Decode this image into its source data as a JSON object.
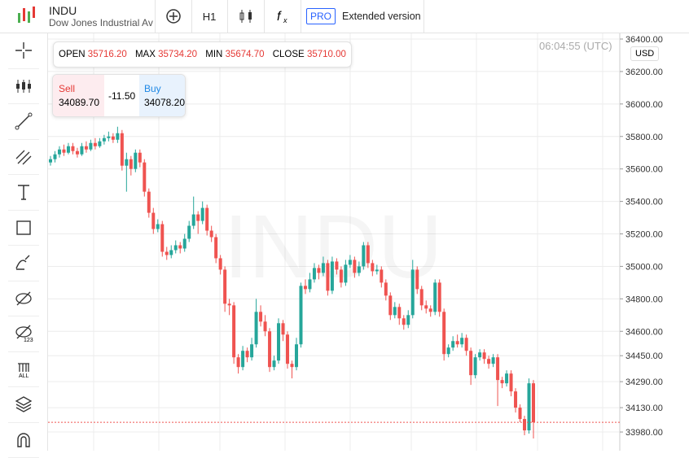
{
  "header": {
    "symbol": "INDU",
    "name": "Dow Jones Industrial Ave",
    "timeframe": "H1",
    "pro": "PRO",
    "extended": "Extended version"
  },
  "ohlc_bar": {
    "open_label": "OPEN",
    "open": "35716.20",
    "max_label": "MAX",
    "max": "35734.20",
    "min_label": "MIN",
    "min": "35674.70",
    "close_label": "CLOSE",
    "close": "35710.00"
  },
  "trade": {
    "sell_label": "Sell",
    "sell": "34089.70",
    "spread": "-11.50",
    "buy_label": "Buy",
    "buy": "34078.20"
  },
  "clock": "06:04:55 (UTC)",
  "currency": "USD",
  "chart_data": {
    "type": "candlestick",
    "watermark": "INDU",
    "up_color": "#26a69a",
    "down_color": "#ef5350",
    "ylim": [
      33865,
      36435
    ],
    "yticks": [
      {
        "value": 36400,
        "label": "36400.00"
      },
      {
        "value": 36200,
        "label": "36200.00"
      },
      {
        "value": 36000,
        "label": "36000.00"
      },
      {
        "value": 35800,
        "label": "35800.00"
      },
      {
        "value": 35600,
        "label": "35600.00"
      },
      {
        "value": 35400,
        "label": "35400.00"
      },
      {
        "value": 35200,
        "label": "35200.00"
      },
      {
        "value": 35000,
        "label": "35000.00"
      },
      {
        "value": 34800,
        "label": "34800.00"
      },
      {
        "value": 34600,
        "label": "34600.00"
      },
      {
        "value": 34450,
        "label": "34450.00"
      },
      {
        "value": 34290,
        "label": "34290.00"
      },
      {
        "value": 34130,
        "label": "34130.00"
      },
      {
        "value": 33980,
        "label": "33980.00"
      }
    ],
    "ohlc": [
      [
        35640,
        35680,
        35620,
        35660
      ],
      [
        35660,
        35710,
        35640,
        35690
      ],
      [
        35690,
        35740,
        35670,
        35720
      ],
      [
        35720,
        35750,
        35680,
        35700
      ],
      [
        35700,
        35760,
        35690,
        35740
      ],
      [
        35740,
        35760,
        35690,
        35710
      ],
      [
        35710,
        35730,
        35670,
        35690
      ],
      [
        35690,
        35760,
        35680,
        35740
      ],
      [
        35740,
        35770,
        35700,
        35720
      ],
      [
        35720,
        35780,
        35710,
        35760
      ],
      [
        35760,
        35790,
        35720,
        35740
      ],
      [
        35740,
        35790,
        35730,
        35770
      ],
      [
        35770,
        35810,
        35750,
        35790
      ],
      [
        35790,
        35830,
        35770,
        35800
      ],
      [
        35800,
        35820,
        35760,
        35780
      ],
      [
        35780,
        35860,
        35760,
        35820
      ],
      [
        35820,
        35840,
        35590,
        35620
      ],
      [
        35620,
        35700,
        35460,
        35660
      ],
      [
        35660,
        35680,
        35560,
        35600
      ],
      [
        35600,
        35720,
        35580,
        35700
      ],
      [
        35700,
        35720,
        35610,
        35640
      ],
      [
        35640,
        35660,
        35430,
        35460
      ],
      [
        35460,
        35480,
        35300,
        35330
      ],
      [
        35330,
        35360,
        35200,
        35230
      ],
      [
        35230,
        35290,
        35210,
        35260
      ],
      [
        35260,
        35280,
        35060,
        35090
      ],
      [
        35090,
        35120,
        35040,
        35070
      ],
      [
        35070,
        35130,
        35050,
        35100
      ],
      [
        35100,
        35160,
        35080,
        35130
      ],
      [
        35130,
        35150,
        35080,
        35110
      ],
      [
        35110,
        35200,
        35090,
        35170
      ],
      [
        35170,
        35280,
        35150,
        35250
      ],
      [
        35250,
        35430,
        35230,
        35320
      ],
      [
        35320,
        35340,
        35200,
        35280
      ],
      [
        35280,
        35400,
        35260,
        35360
      ],
      [
        35360,
        35380,
        35190,
        35220
      ],
      [
        35220,
        35250,
        35150,
        35180
      ],
      [
        35180,
        35200,
        35020,
        35050
      ],
      [
        35050,
        35070,
        34950,
        34980
      ],
      [
        34980,
        35000,
        34720,
        34770
      ],
      [
        34770,
        34800,
        34700,
        34760
      ],
      [
        34760,
        34780,
        34400,
        34440
      ],
      [
        34440,
        34460,
        34340,
        34380
      ],
      [
        34380,
        34510,
        34360,
        34480
      ],
      [
        34480,
        34500,
        34410,
        34440
      ],
      [
        34440,
        34560,
        34420,
        34520
      ],
      [
        34520,
        34800,
        34500,
        34720
      ],
      [
        34720,
        34760,
        34630,
        34660
      ],
      [
        34660,
        34700,
        34570,
        34600
      ],
      [
        34600,
        34620,
        34350,
        34380
      ],
      [
        34380,
        34450,
        34360,
        34420
      ],
      [
        34420,
        34680,
        34400,
        34650
      ],
      [
        34650,
        34670,
        34540,
        34580
      ],
      [
        34580,
        34600,
        34370,
        34400
      ],
      [
        34400,
        34420,
        34310,
        34380
      ],
      [
        34380,
        34560,
        34360,
        34520
      ],
      [
        34520,
        34900,
        34500,
        34880
      ],
      [
        34880,
        34920,
        34830,
        34860
      ],
      [
        34860,
        34960,
        34840,
        34920
      ],
      [
        34920,
        35020,
        34900,
        34990
      ],
      [
        34990,
        35010,
        34920,
        34960
      ],
      [
        34960,
        35060,
        34940,
        35020
      ],
      [
        35020,
        35040,
        34820,
        34850
      ],
      [
        34850,
        35060,
        34830,
        35030
      ],
      [
        35030,
        35050,
        34950,
        34980
      ],
      [
        34980,
        35000,
        34870,
        34900
      ],
      [
        34900,
        35040,
        34880,
        35010
      ],
      [
        35010,
        35070,
        34990,
        35040
      ],
      [
        35040,
        35060,
        34930,
        34960
      ],
      [
        34960,
        35030,
        34940,
        35000
      ],
      [
        35000,
        35150,
        34980,
        35130
      ],
      [
        35130,
        35150,
        34990,
        35020
      ],
      [
        35020,
        35040,
        34940,
        34970
      ],
      [
        34970,
        35010,
        34950,
        34980
      ],
      [
        34980,
        35000,
        34870,
        34900
      ],
      [
        34900,
        34920,
        34790,
        34820
      ],
      [
        34820,
        34840,
        34670,
        34700
      ],
      [
        34700,
        34780,
        34680,
        34750
      ],
      [
        34750,
        34770,
        34640,
        34680
      ],
      [
        34680,
        34700,
        34610,
        34640
      ],
      [
        34640,
        34730,
        34620,
        34700
      ],
      [
        34700,
        35040,
        34680,
        34980
      ],
      [
        34980,
        35000,
        34830,
        34860
      ],
      [
        34860,
        34880,
        34730,
        34760
      ],
      [
        34760,
        34790,
        34710,
        34740
      ],
      [
        34740,
        34760,
        34690,
        34720
      ],
      [
        34720,
        34920,
        34700,
        34900
      ],
      [
        34900,
        34920,
        34690,
        34720
      ],
      [
        34720,
        34740,
        34420,
        34460
      ],
      [
        34460,
        34520,
        34440,
        34500
      ],
      [
        34500,
        34570,
        34480,
        34540
      ],
      [
        34540,
        34580,
        34500,
        34520
      ],
      [
        34520,
        34590,
        34500,
        34560
      ],
      [
        34560,
        34580,
        34450,
        34480
      ],
      [
        34480,
        34500,
        34270,
        34330
      ],
      [
        34330,
        34460,
        34310,
        34440
      ],
      [
        34440,
        34490,
        34420,
        34470
      ],
      [
        34470,
        34490,
        34400,
        34430
      ],
      [
        34430,
        34450,
        34370,
        34400
      ],
      [
        34400,
        34460,
        34380,
        34440
      ],
      [
        34440,
        34460,
        34140,
        34300
      ],
      [
        34300,
        34320,
        34250,
        34280
      ],
      [
        34280,
        34360,
        34260,
        34340
      ],
      [
        34340,
        34360,
        34200,
        34230
      ],
      [
        34230,
        34250,
        34100,
        34130
      ],
      [
        34130,
        34150,
        34040,
        34060
      ],
      [
        34060,
        34080,
        33960,
        33990
      ],
      [
        33990,
        34310,
        33970,
        34280
      ],
      [
        34280,
        34300,
        33940,
        34040
      ]
    ]
  }
}
